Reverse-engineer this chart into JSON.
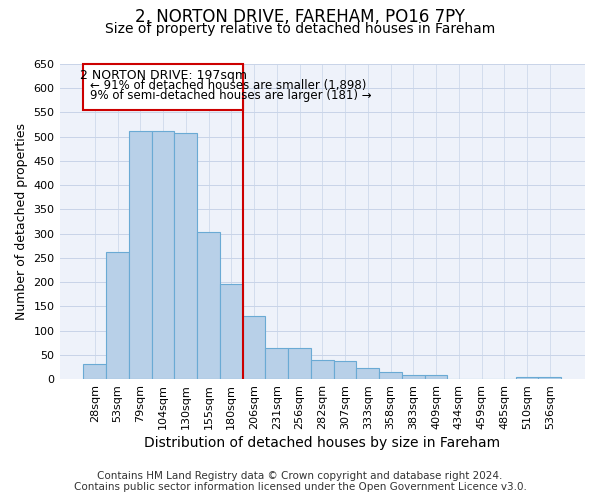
{
  "title1": "2, NORTON DRIVE, FAREHAM, PO16 7PY",
  "title2": "Size of property relative to detached houses in Fareham",
  "xlabel": "Distribution of detached houses by size in Fareham",
  "ylabel": "Number of detached properties",
  "footer1": "Contains HM Land Registry data © Crown copyright and database right 2024.",
  "footer2": "Contains public sector information licensed under the Open Government Licence v3.0.",
  "annotation_line1": "2 NORTON DRIVE: 197sqm",
  "annotation_line2": "← 91% of detached houses are smaller (1,898)",
  "annotation_line3": "9% of semi-detached houses are larger (181) →",
  "bar_values": [
    32,
    263,
    512,
    512,
    508,
    303,
    197,
    131,
    65,
    65,
    40,
    38,
    23,
    15,
    8,
    8,
    0,
    0,
    0,
    5,
    5
  ],
  "categories": [
    "28sqm",
    "53sqm",
    "79sqm",
    "104sqm",
    "130sqm",
    "155sqm",
    "180sqm",
    "206sqm",
    "231sqm",
    "256sqm",
    "282sqm",
    "307sqm",
    "333sqm",
    "358sqm",
    "383sqm",
    "409sqm",
    "434sqm",
    "459sqm",
    "485sqm",
    "510sqm",
    "536sqm"
  ],
  "bar_color": "#b8d0e8",
  "bar_edge_color": "#6aaad4",
  "marker_line_color": "#cc0000",
  "ylim": [
    0,
    650
  ],
  "yticks": [
    0,
    50,
    100,
    150,
    200,
    250,
    300,
    350,
    400,
    450,
    500,
    550,
    600,
    650
  ],
  "grid_color": "#c8d4e8",
  "background_color": "#eef2fa",
  "annotation_box_color": "#ffffff",
  "annotation_box_edge": "#cc0000",
  "title1_fontsize": 12,
  "title2_fontsize": 10,
  "xlabel_fontsize": 10,
  "ylabel_fontsize": 9,
  "tick_fontsize": 8,
  "annotation_fontsize": 9,
  "footer_fontsize": 7.5
}
